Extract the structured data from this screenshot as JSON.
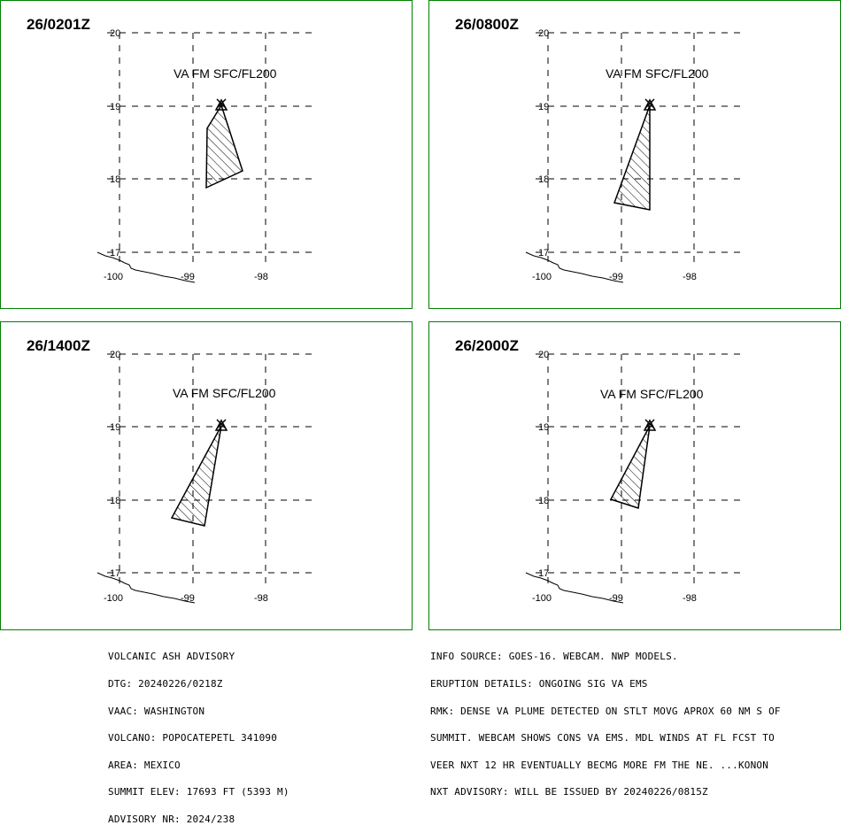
{
  "colors": {
    "frame": "#008000",
    "ink": "#000000",
    "background": "#ffffff"
  },
  "axis_labels": {
    "lat": [
      "20",
      "19",
      "18",
      "17"
    ],
    "lon": [
      "-100",
      "-99",
      "-98"
    ]
  },
  "panels": [
    {
      "valid_time": "26/0201Z",
      "level_label": "VA FM SFC/FL200"
    },
    {
      "valid_time": "26/0800Z",
      "level_label": "VA FM SFC/FL200"
    },
    {
      "valid_time": "26/1400Z",
      "level_label": "VA FM SFC/FL200"
    },
    {
      "valid_time": "26/2000Z",
      "level_label": "VA FM SFC/FL200"
    }
  ],
  "advisory_left": [
    "VOLCANIC ASH ADVISORY",
    "DTG: 20240226/0218Z",
    "VAAC: WASHINGTON",
    "VOLCANO: POPOCATEPETL 341090",
    "AREA: MEXICO",
    "SUMMIT ELEV: 17693 FT (5393 M)",
    "ADVISORY NR: 2024/238"
  ],
  "advisory_right": [
    "INFO SOURCE: GOES-16. WEBCAM. NWP MODELS.",
    "ERUPTION DETAILS: ONGOING SIG VA EMS",
    "RMK: DENSE VA PLUME DETECTED ON STLT MOVG APROX 60 NM S OF",
    "SUMMIT. WEBCAM SHOWS CONS VA EMS. MDL WINDS AT FL FCST TO",
    "VEER NXT 12 HR EVENTUALLY BECMG MORE FM THE NE. ...KONON",
    "NXT ADVISORY: WILL BE ISSUED BY 20240226/0815Z"
  ]
}
